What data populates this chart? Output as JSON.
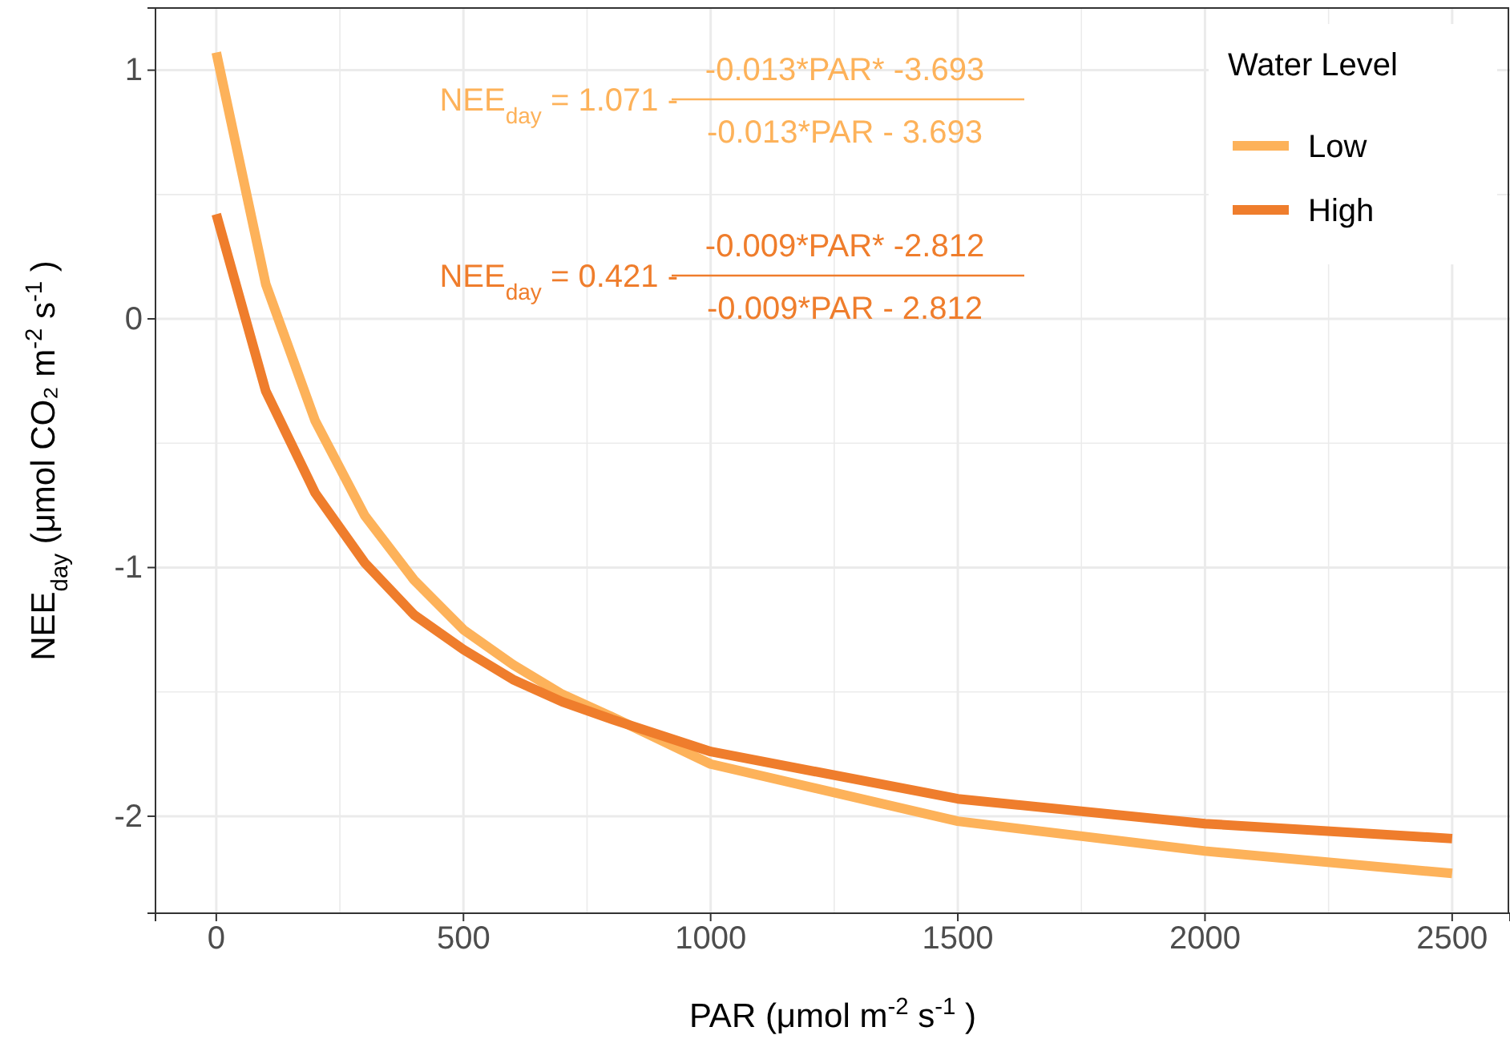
{
  "chart_data": {
    "type": "line",
    "xlabel": "PAR (μmol m$^{-2}$ s$^{-1}$ )",
    "ylabel": "NEE$_{day}$ (μmol CO₂ m$^{-2}$ s$^{-1}$ )",
    "legend_title": "Water Level",
    "legend": "top right",
    "grid": true,
    "line_style": "solid",
    "marker": "none",
    "x": [
      0,
      100,
      200,
      300,
      400,
      500,
      600,
      700,
      800,
      1000,
      1500,
      2000,
      2500
    ],
    "xlim": [
      -123,
      2617
    ],
    "ylim": [
      -2.39,
      1.25
    ],
    "xticks": [
      0,
      {
        "value": 250,
        "label": null
      },
      500,
      {
        "value": 750,
        "label": null
      },
      1000,
      {
        "value": 1250,
        "label": null
      },
      1500,
      {
        "value": 1750,
        "label": null
      },
      2000,
      {
        "value": 2250,
        "label": null
      },
      2500
    ],
    "yticks": [
      -2,
      {
        "value": -1.5,
        "label": null
      },
      -1,
      {
        "value": -0.5,
        "label": null
      },
      0,
      {
        "value": 0.5,
        "label": null
      },
      1
    ],
    "series": [
      {
        "name": "Low",
        "color": "#fdb25a",
        "values": [
          1.071,
          0.14,
          -0.41,
          -0.79,
          -1.05,
          -1.25,
          -1.39,
          -1.51,
          -1.6,
          -1.79,
          -2.02,
          -2.14,
          -2.23
        ]
      },
      {
        "name": "High",
        "color": "#ef7d2c",
        "values": [
          0.421,
          -0.29,
          -0.7,
          -0.98,
          -1.19,
          -1.33,
          -1.45,
          -1.54,
          -1.61,
          -1.74,
          -1.93,
          -2.03,
          -2.09
        ]
      }
    ],
    "annotations": [
      "NEE$_{day}$ = 1.071 - ",
      "-0.013*PAR* -3.693",
      "-0.013*PAR - 3.693",
      "NEE$_{day}$ = 0.421 - ",
      "-0.009*PAR* -2.812",
      "-0.009*PAR - 2.812"
    ]
  }
}
